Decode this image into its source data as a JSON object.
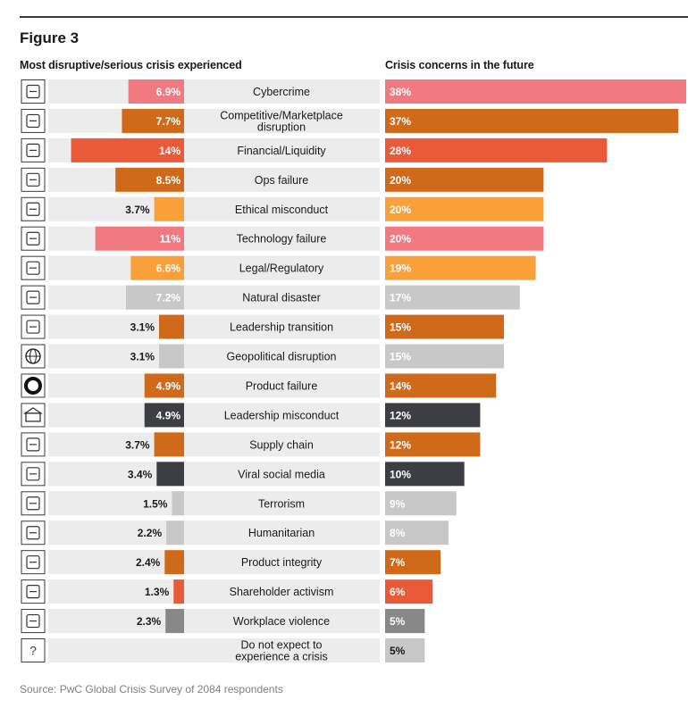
{
  "figure_label": "Figure 3",
  "left_header": "Most disruptive/serious crisis experienced",
  "right_header": "Crisis concerns in the future",
  "source": "Source: PwC Global Crisis Survey of 2084 respondents",
  "colors": {
    "pink": "#f07a80",
    "orange": "#cf6a1b",
    "red": "#eb5a38",
    "amber": "#f9a03b",
    "gray": "#c8c8c8",
    "charcoal": "#3c3e44",
    "midgray": "#888888",
    "row_band": "#ececec"
  },
  "chart_data": {
    "type": "bar",
    "title": "Figure 3",
    "series": [
      {
        "name": "Most disruptive/serious crisis experienced",
        "unit": "%",
        "xlim": [
          0,
          15.5
        ],
        "direction": "leftward",
        "values": [
          6.9,
          7.7,
          14,
          8.5,
          3.7,
          11,
          6.6,
          7.2,
          3.1,
          3.1,
          4.9,
          4.9,
          3.7,
          3.4,
          1.5,
          2.2,
          2.4,
          1.3,
          2.3,
          null
        ],
        "labels": [
          "6.9%",
          "7.7%",
          "14%",
          "8.5%",
          "3.7%",
          "11%",
          "6.6%",
          "7.2%",
          "3.1%",
          "3.1%",
          "4.9%",
          "4.9%",
          "3.7%",
          "3.4%",
          "1.5%",
          "2.2%",
          "2.4%",
          "1.3%",
          "2.3%",
          ""
        ]
      },
      {
        "name": "Crisis concerns in the future",
        "unit": "%",
        "xlim": [
          0,
          38
        ],
        "values": [
          38,
          37,
          28,
          20,
          20,
          20,
          19,
          17,
          15,
          15,
          14,
          12,
          12,
          10,
          9,
          8,
          7,
          6,
          5,
          5
        ],
        "labels": [
          "38%",
          "37%",
          "28%",
          "20%",
          "20%",
          "20%",
          "19%",
          "17%",
          "15%",
          "15%",
          "14%",
          "12%",
          "12%",
          "10%",
          "9%",
          "8%",
          "7%",
          "6%",
          "5%",
          "5%"
        ]
      }
    ],
    "categories": [
      {
        "label": "Cybercrime",
        "icon": "computer-network-icon",
        "color": "pink"
      },
      {
        "label": "Competitive/Marketplace disruption",
        "icon": "handshake-icon",
        "color": "orange"
      },
      {
        "label": "Financial/Liquidity",
        "icon": "banknote-icon",
        "color": "red"
      },
      {
        "label": "Ops failure",
        "icon": "factory-icon",
        "color": "orange"
      },
      {
        "label": "Ethical misconduct",
        "icon": "magnifier-person-icon",
        "color": "amber"
      },
      {
        "label": "Technology failure",
        "icon": "circuit-icon",
        "color": "pink"
      },
      {
        "label": "Legal/Regulatory",
        "icon": "scales-icon",
        "color": "amber"
      },
      {
        "label": "Natural disaster",
        "icon": "leaf-icon",
        "color": "gray"
      },
      {
        "label": "Leadership transition",
        "icon": "person-icon",
        "color": "orange"
      },
      {
        "label": "Geopolitical disruption",
        "icon": "globe-icon",
        "color": "gray"
      },
      {
        "label": "Product failure",
        "icon": "ring-icon",
        "color": "orange"
      },
      {
        "label": "Leadership misconduct",
        "icon": "building-icon",
        "color": "charcoal"
      },
      {
        "label": "Supply chain",
        "icon": "supply-chain-icon",
        "color": "orange"
      },
      {
        "label": "Viral social media",
        "icon": "social-media-icon",
        "color": "charcoal"
      },
      {
        "label": "Terrorism",
        "icon": "lock-window-icon",
        "color": "gray"
      },
      {
        "label": "Humanitarian",
        "icon": "hand-plus-icon",
        "color": "gray"
      },
      {
        "label": "Product integrity",
        "icon": "production-line-icon",
        "color": "orange"
      },
      {
        "label": "Shareholder activism",
        "icon": "sliders-icon",
        "color": "red"
      },
      {
        "label": "Workplace violence",
        "icon": "gavel-icon",
        "color": "midgray"
      },
      {
        "label": "Do not expect to experience a crisis",
        "icon": "question-icon",
        "color": "gray"
      }
    ]
  }
}
